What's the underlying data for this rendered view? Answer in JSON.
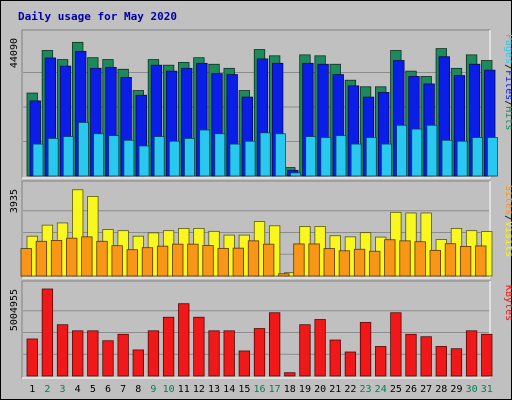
{
  "chart_data": {
    "type": "bar",
    "title": "Daily usage for May 2020",
    "colors": {
      "hits": "#1e8a5c",
      "files": "#0a1ee8",
      "pages": "#28c8f0",
      "visits": "#f8f820",
      "sites": "#f89618",
      "kbytes": "#f01818",
      "background": "#c0c0c0",
      "title": "#0000a8",
      "weekend": "#00805a"
    },
    "weekend_days": [
      "2",
      "3",
      "9",
      "10",
      "16",
      "17",
      "23",
      "24",
      "30",
      "31"
    ],
    "days": [
      "1",
      "2",
      "3",
      "4",
      "5",
      "6",
      "7",
      "8",
      "9",
      "10",
      "11",
      "12",
      "13",
      "14",
      "15",
      "16",
      "17",
      "18",
      "19",
      "20",
      "21",
      "22",
      "23",
      "24",
      "25",
      "26",
      "27",
      "28",
      "29",
      "30",
      "31"
    ],
    "panels": [
      {
        "id": "top",
        "max_label": "44090",
        "ymax": 44090,
        "legend": [
          "Pages",
          "/",
          "Files",
          "/",
          "Hits"
        ],
        "series": [
          {
            "name": "Hits",
            "values": [
              26500,
              40100,
              37200,
              42700,
              37800,
              37200,
              34100,
              27300,
              37200,
              35400,
              36300,
              37800,
              35700,
              34400,
              27300,
              40400,
              38400,
              2700,
              38700,
              38400,
              35700,
              30600,
              28500,
              28500,
              40100,
              33500,
              31800,
              40700,
              34400,
              38700,
              36900
            ]
          },
          {
            "name": "Files",
            "values": [
              24000,
              37700,
              35100,
              39800,
              34400,
              34700,
              31500,
              25800,
              35400,
              33500,
              34400,
              36000,
              32700,
              32400,
              25200,
              37400,
              36000,
              1800,
              36000,
              35700,
              32400,
              28800,
              25200,
              26700,
              36900,
              31800,
              29400,
              38100,
              32100,
              35700,
              33800
            ]
          },
          {
            "name": "Pages",
            "values": [
              10200,
              12000,
              12600,
              17100,
              13500,
              12900,
              11400,
              9600,
              12600,
              11100,
              12000,
              14700,
              13500,
              10200,
              11100,
              13800,
              13500,
              1000,
              12600,
              12300,
              12900,
              10200,
              12300,
              10200,
              16200,
              15000,
              16200,
              11400,
              11100,
              12300,
              12300
            ]
          }
        ]
      },
      {
        "id": "middle",
        "max_label": "3935",
        "ymax": 3935,
        "legend": [
          "Sites",
          "/",
          "Visits"
        ],
        "series": [
          {
            "name": "Visits",
            "values": [
              1800,
              2300,
              2400,
              3900,
              3600,
              2100,
              2050,
              1800,
              1950,
              2050,
              2150,
              2150,
              2020,
              1850,
              1850,
              2460,
              2270,
              150,
              2240,
              2240,
              1820,
              1770,
              1960,
              1760,
              2880,
              2850,
              2850,
              1650,
              2150,
              2050,
              2010
            ]
          },
          {
            "name": "Sites",
            "values": [
              1240,
              1570,
              1610,
              1710,
              1770,
              1570,
              1370,
              1190,
              1280,
              1350,
              1440,
              1440,
              1380,
              1250,
              1260,
              1590,
              1440,
              100,
              1450,
              1450,
              1240,
              1140,
              1210,
              1120,
              1640,
              1590,
              1550,
              1160,
              1460,
              1340,
              1360
            ]
          }
        ]
      },
      {
        "id": "bottom",
        "max_label": "5004955",
        "ymax": 5004955,
        "legend": [
          "KBytes"
        ],
        "series": [
          {
            "name": "KBytes",
            "values": [
              2130000,
              5004955,
              2950000,
              2600000,
              2600000,
              2030000,
              2400000,
              1500000,
              2600000,
              3380000,
              4160000,
              3380000,
              2600000,
              2600000,
              1440000,
              2730000,
              3640000,
              190000,
              2950000,
              3250000,
              2070000,
              1380000,
              3080000,
              1700000,
              3640000,
              2400000,
              2260000,
              1700000,
              1570000,
              2600000,
              2400000
            ]
          }
        ]
      }
    ]
  }
}
